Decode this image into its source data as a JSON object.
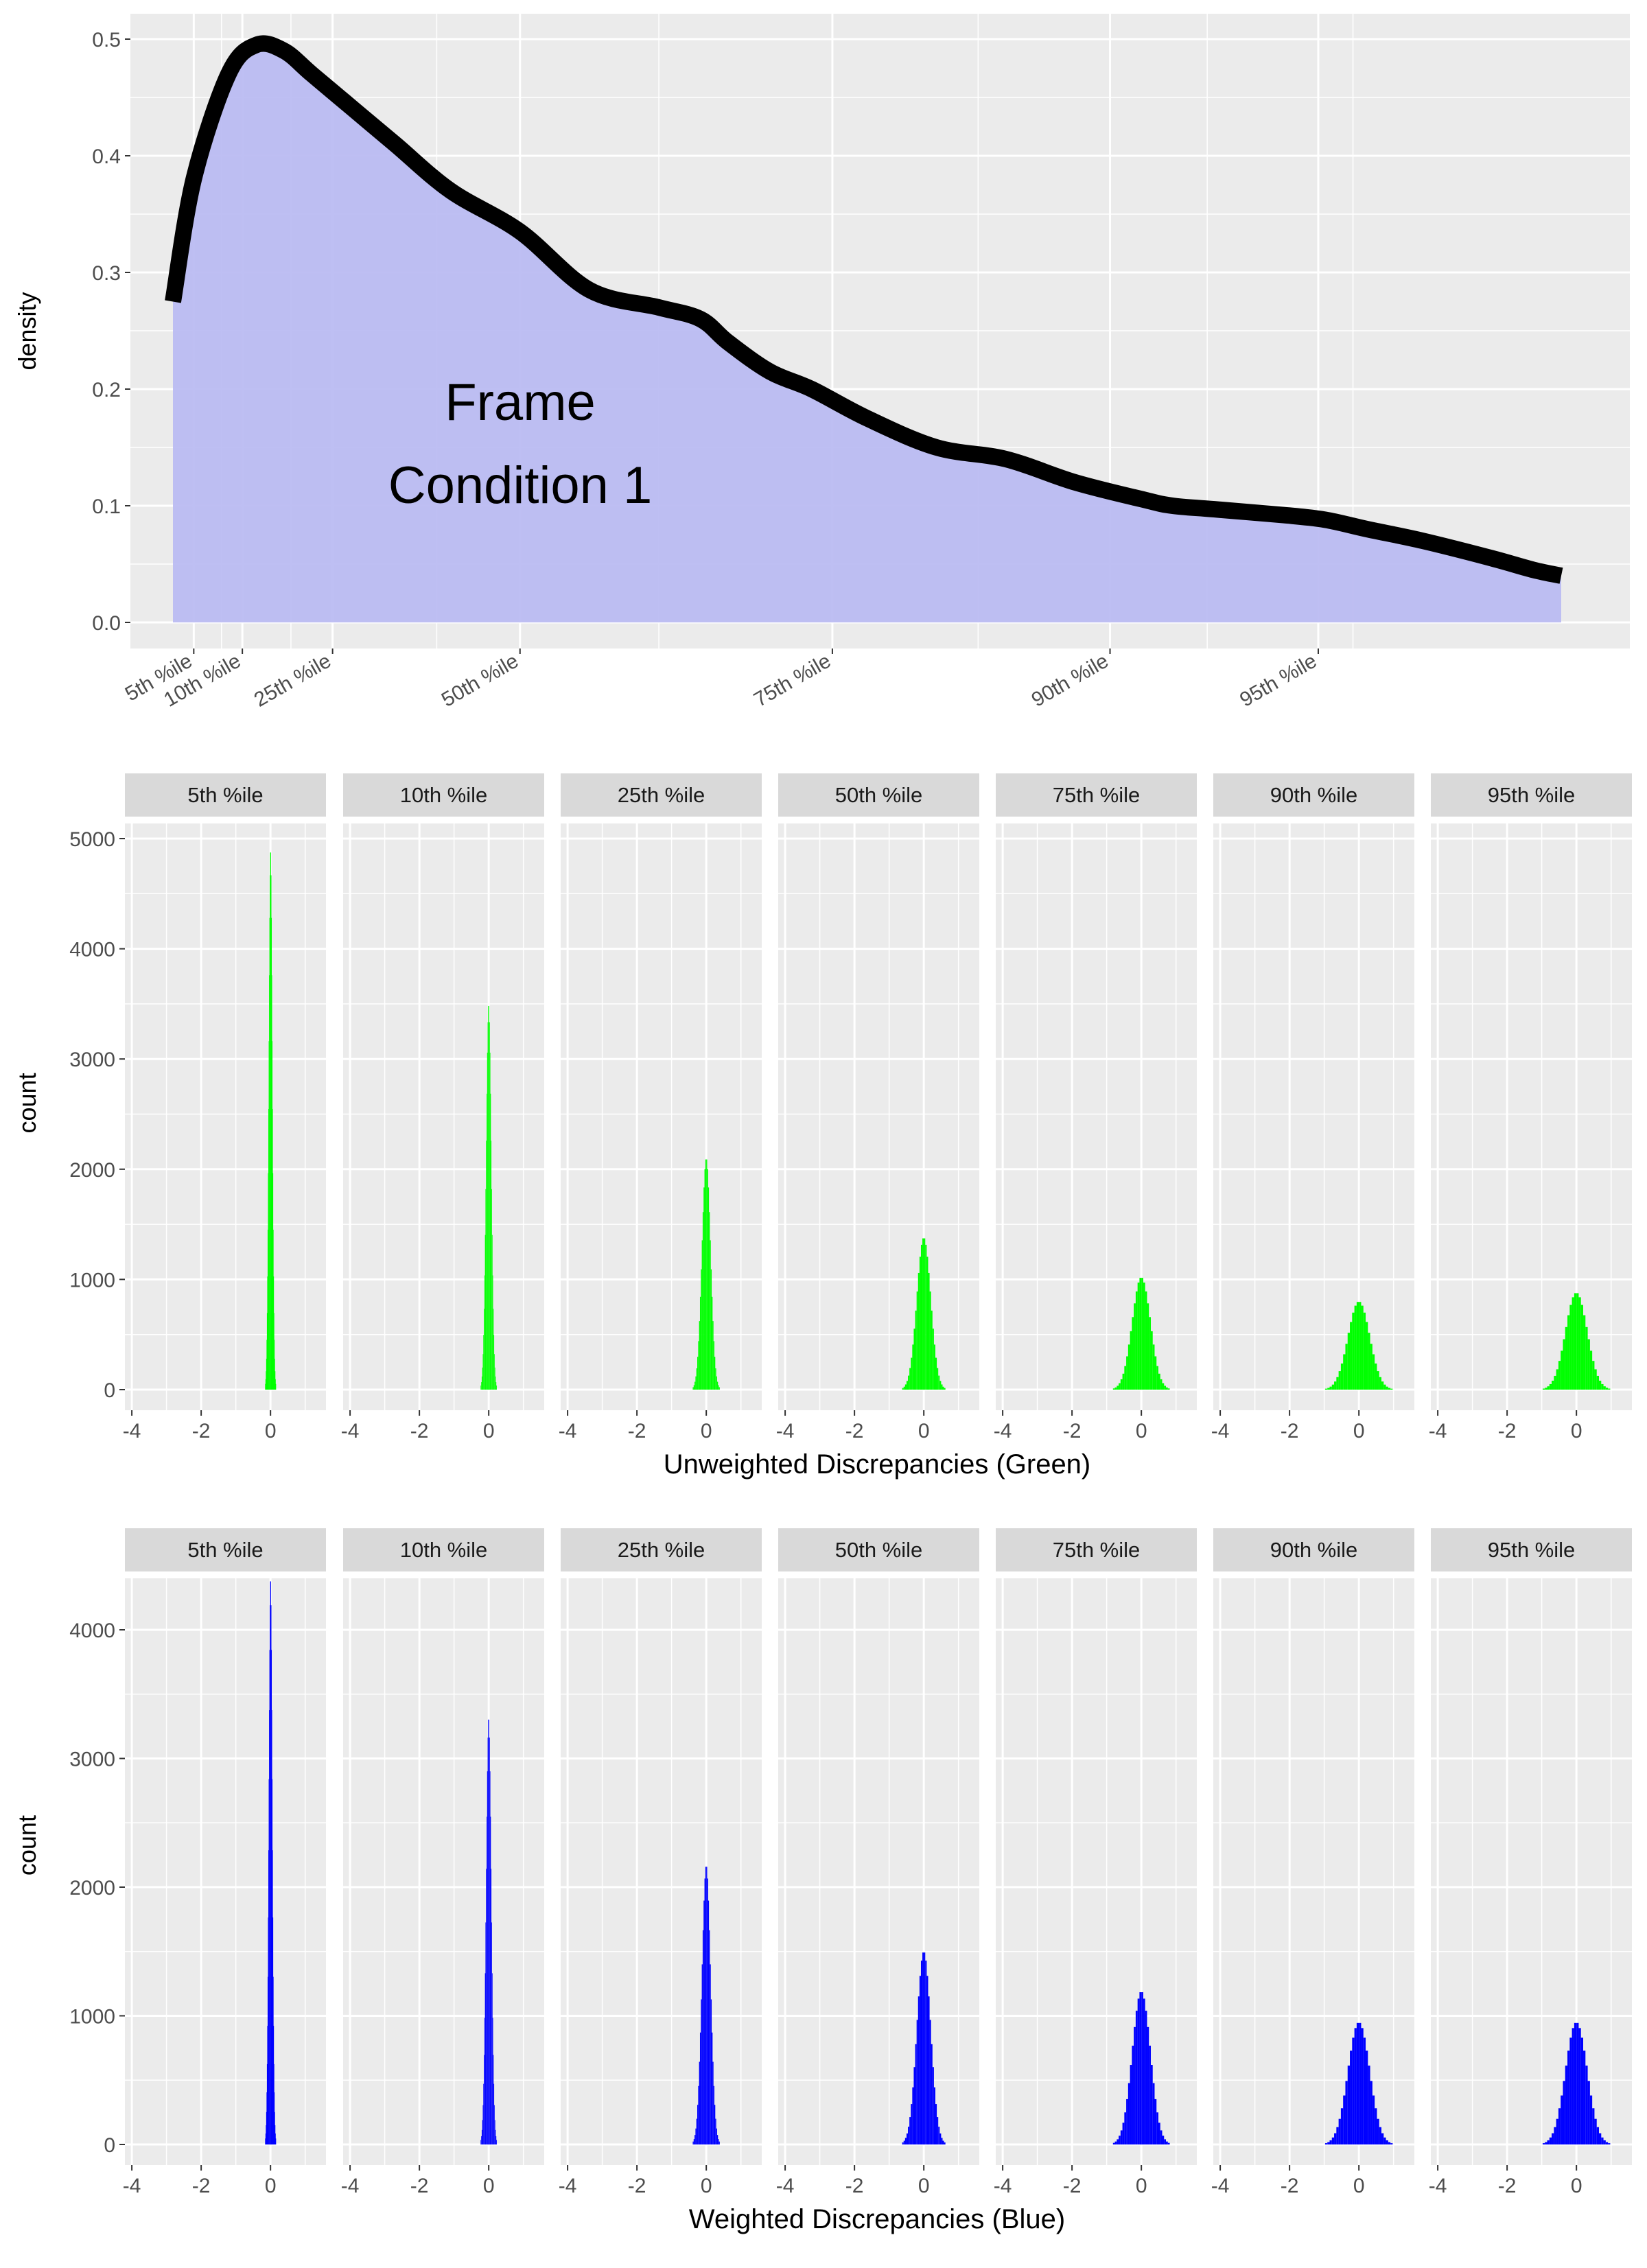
{
  "chart_data": [
    {
      "type": "area",
      "ylabel": "density",
      "xlabel": "",
      "ylim": [
        0,
        0.52
      ],
      "yticks": [
        0.0,
        0.1,
        0.2,
        0.3,
        0.4,
        0.5
      ],
      "ytick_labels": [
        "0.0",
        "0.1",
        "0.2",
        "0.3",
        "0.4",
        "0.5"
      ],
      "annotation": [
        "Frame",
        "Condition 1"
      ],
      "fill_color": "#bbbcf2",
      "line_color": "#000000",
      "curve": {
        "x": [
          0.0,
          0.015,
          0.04,
          0.06,
          0.08,
          0.1,
          0.13,
          0.16,
          0.2,
          0.25,
          0.3,
          0.35,
          0.38,
          0.4,
          0.43,
          0.46,
          0.5,
          0.55,
          0.6,
          0.65,
          0.7,
          0.72,
          0.75,
          0.8,
          0.83,
          0.86,
          0.9,
          0.95,
          0.98,
          1.0
        ],
        "y": [
          0.275,
          0.38,
          0.47,
          0.495,
          0.49,
          0.47,
          0.44,
          0.41,
          0.37,
          0.335,
          0.285,
          0.27,
          0.26,
          0.24,
          0.215,
          0.2,
          0.175,
          0.15,
          0.14,
          0.12,
          0.105,
          0.1,
          0.097,
          0.092,
          0.088,
          0.08,
          0.07,
          0.055,
          0.045,
          0.04
        ]
      },
      "percentile_x": [
        0.015,
        0.05,
        0.115,
        0.25,
        0.475,
        0.675,
        0.825
      ],
      "percentile_labels": [
        "5th %ile",
        "10th %ile",
        "25th %ile",
        "50th %ile",
        "75th %ile",
        "90th %ile",
        "95th %ile"
      ]
    },
    {
      "type": "bar",
      "subtype": "histogram-facets",
      "xlabel": "Unweighted Discrepancies (Green)",
      "ylabel": "count",
      "color": "#00ff00",
      "ylim": [
        0,
        5200
      ],
      "yticks": [
        0,
        1000,
        2000,
        3000,
        4000,
        5000
      ],
      "xlim": [
        -4.2,
        1.6
      ],
      "xticks": [
        -4,
        -2,
        0
      ],
      "facets": [
        "5th %ile",
        "10th %ile",
        "25th %ile",
        "50th %ile",
        "75th %ile",
        "90th %ile",
        "95th %ile"
      ],
      "peaks": [
        4900,
        3500,
        2100,
        1380,
        1020,
        800,
        880
      ],
      "widths": [
        0.08,
        0.12,
        0.2,
        0.32,
        0.42,
        0.5,
        0.5
      ]
    },
    {
      "type": "bar",
      "subtype": "histogram-facets",
      "xlabel": "Weighted Discrepancies (Blue)",
      "ylabel": "count",
      "color": "#0000ff",
      "ylim": [
        0,
        4650
      ],
      "yticks": [
        0,
        1000,
        2000,
        3000,
        4000
      ],
      "xlim": [
        -4.2,
        1.6
      ],
      "xticks": [
        -4,
        -2,
        0
      ],
      "facets": [
        "5th %ile",
        "10th %ile",
        "25th %ile",
        "50th %ile",
        "75th %ile",
        "90th %ile",
        "95th %ile"
      ],
      "peaks": [
        4400,
        3320,
        2170,
        1500,
        1190,
        950,
        950
      ],
      "widths": [
        0.08,
        0.12,
        0.2,
        0.32,
        0.42,
        0.5,
        0.5
      ]
    }
  ]
}
